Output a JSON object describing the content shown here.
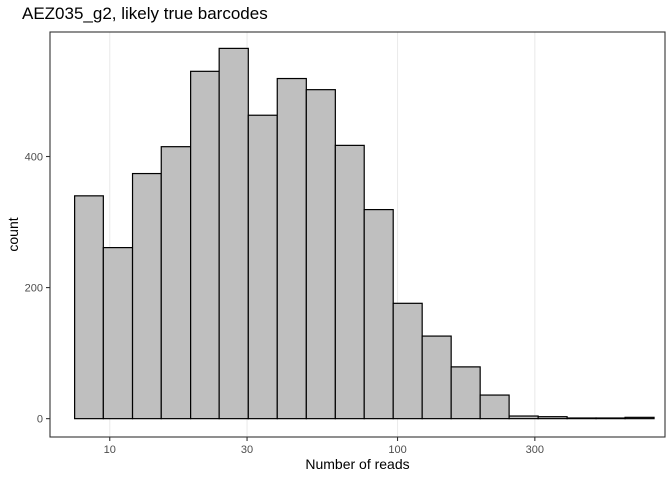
{
  "chart_data": {
    "type": "bar",
    "title": "AEZ035_g2, likely true barcodes",
    "xlabel": "Number of reads",
    "ylabel": "count",
    "x_scale": "log10",
    "x_ticks": [
      10,
      30,
      100,
      300
    ],
    "x_tick_labels": [
      "10",
      "30",
      "100",
      "300"
    ],
    "y_ticks": [
      0,
      200,
      400
    ],
    "y_tick_labels": [
      "0",
      "200",
      "400"
    ],
    "xlim": [
      6.2,
      850
    ],
    "ylim": [
      -28,
      590
    ],
    "grid": true,
    "bar_fill": "#bfbfbf",
    "bar_stroke": "#000000",
    "bins": [
      {
        "x_start": 7.55,
        "x_end": 9.5,
        "count": 340
      },
      {
        "x_start": 9.5,
        "x_end": 12.0,
        "count": 261
      },
      {
        "x_start": 12.0,
        "x_end": 15.1,
        "count": 374
      },
      {
        "x_start": 15.1,
        "x_end": 19.1,
        "count": 415
      },
      {
        "x_start": 19.1,
        "x_end": 24.0,
        "count": 530
      },
      {
        "x_start": 24.0,
        "x_end": 30.3,
        "count": 565
      },
      {
        "x_start": 30.3,
        "x_end": 38.2,
        "count": 463
      },
      {
        "x_start": 38.2,
        "x_end": 48.2,
        "count": 519
      },
      {
        "x_start": 48.2,
        "x_end": 60.8,
        "count": 502
      },
      {
        "x_start": 60.8,
        "x_end": 76.6,
        "count": 417
      },
      {
        "x_start": 76.6,
        "x_end": 96.6,
        "count": 319
      },
      {
        "x_start": 96.6,
        "x_end": 121.8,
        "count": 176
      },
      {
        "x_start": 121.8,
        "x_end": 153.6,
        "count": 126
      },
      {
        "x_start": 153.6,
        "x_end": 193.7,
        "count": 79
      },
      {
        "x_start": 193.7,
        "x_end": 244.2,
        "count": 36
      },
      {
        "x_start": 244.2,
        "x_end": 308.0,
        "count": 4
      },
      {
        "x_start": 308.0,
        "x_end": 388.3,
        "count": 3
      },
      {
        "x_start": 388.3,
        "x_end": 489.7,
        "count": 1
      },
      {
        "x_start": 489.7,
        "x_end": 617.5,
        "count": 1
      },
      {
        "x_start": 617.5,
        "x_end": 778.7,
        "count": 2
      }
    ]
  }
}
